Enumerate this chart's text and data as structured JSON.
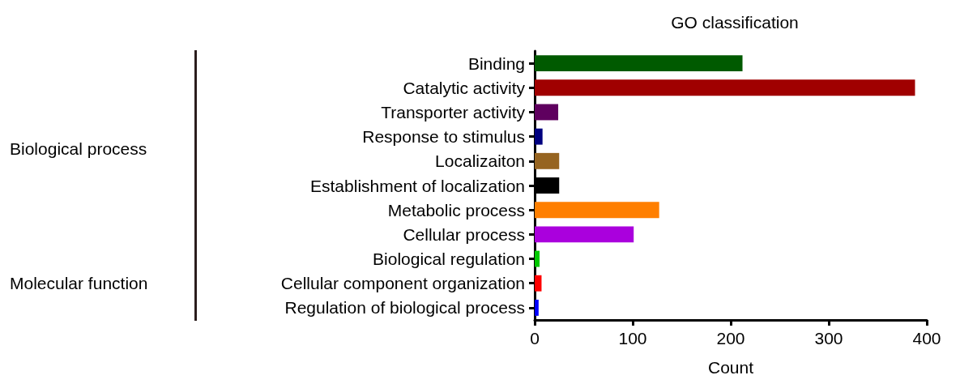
{
  "chart_data": {
    "type": "bar",
    "orientation": "horizontal",
    "title": "GO classification",
    "xlabel": "Count",
    "categories": [
      "Binding",
      "Catalytic activity",
      "Transporter activity",
      "Response to stimulus",
      "Localizaiton",
      "Establishment of localization",
      "Metabolic process",
      "Cellular process",
      "Biological regulation",
      "Cellular component organization",
      "Regulation of biological process"
    ],
    "values": [
      212,
      388,
      24,
      8,
      25,
      25,
      127,
      101,
      5,
      7,
      4
    ],
    "colors": [
      "#005a00",
      "#a00000",
      "#5f005f",
      "#00007f",
      "#966420",
      "#000000",
      "#ff7f00",
      "#aa00dd",
      "#00c800",
      "#ff0000",
      "#0000ff"
    ],
    "xlim": [
      0,
      400
    ],
    "xticks": [
      0,
      100,
      200,
      300,
      400
    ],
    "grid": false,
    "annotations": [
      "Biological process",
      "Molecular function"
    ]
  }
}
